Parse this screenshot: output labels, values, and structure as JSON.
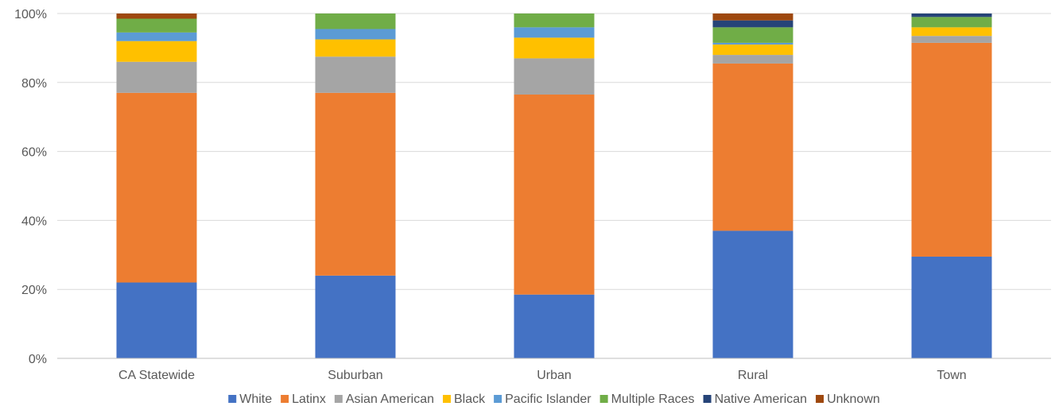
{
  "chart_data": {
    "type": "bar",
    "stacked": true,
    "percent_stacked": true,
    "title": "",
    "xlabel": "",
    "ylabel": "",
    "ylim": [
      0,
      100
    ],
    "y_ticks": [
      "0%",
      "20%",
      "40%",
      "60%",
      "80%",
      "100%"
    ],
    "grid": true,
    "legend_position": "bottom",
    "categories": [
      "CA Statewide",
      "Suburban",
      "Urban",
      "Rural",
      "Town"
    ],
    "series": [
      {
        "name": "White",
        "color": "#4472c4",
        "values": [
          22,
          24,
          18.5,
          37,
          29.5
        ]
      },
      {
        "name": "Latinx",
        "color": "#ed7d31",
        "values": [
          55,
          53,
          58,
          48.5,
          62
        ]
      },
      {
        "name": "Asian American",
        "color": "#a5a5a5",
        "values": [
          9,
          10.5,
          10.5,
          2.5,
          2
        ]
      },
      {
        "name": "Black",
        "color": "#ffc000",
        "values": [
          6,
          5,
          6,
          3,
          2.5
        ]
      },
      {
        "name": "Pacific Islander",
        "color": "#5b9bd5",
        "values": [
          2.5,
          3,
          3,
          0.5,
          0
        ]
      },
      {
        "name": "Multiple Races",
        "color": "#70ad47",
        "values": [
          4,
          4.5,
          4,
          4.5,
          3
        ]
      },
      {
        "name": "Native American",
        "color": "#264478",
        "values": [
          0,
          0,
          0,
          2,
          1
        ]
      },
      {
        "name": "Unknown",
        "color": "#9e480e",
        "values": [
          1.5,
          0,
          0,
          2,
          0
        ]
      }
    ]
  }
}
